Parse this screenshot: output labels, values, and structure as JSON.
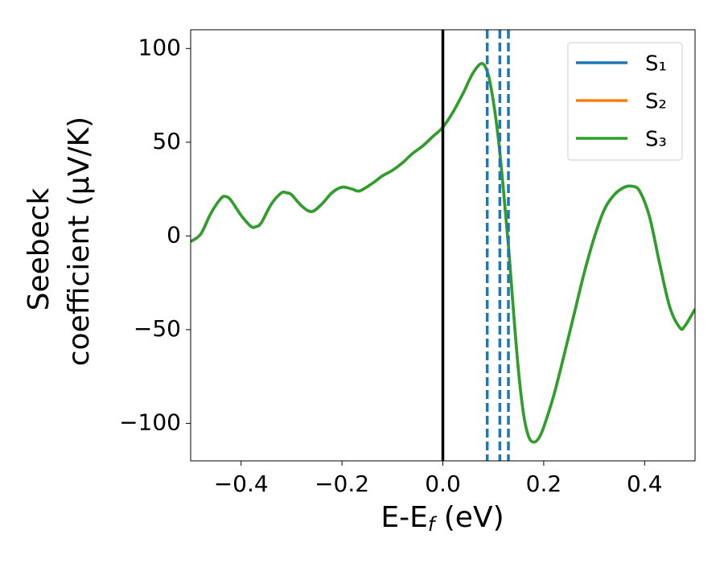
{
  "chart_data": {
    "type": "line",
    "xlabel": [
      "E-E",
      "f",
      " (eV)"
    ],
    "ylabel": [
      "Seebeck",
      "coefficient  (μV/K)"
    ],
    "x": [
      -0.5,
      -0.48,
      -0.46,
      -0.44,
      -0.43,
      -0.42,
      -0.4,
      -0.38,
      -0.37,
      -0.36,
      -0.34,
      -0.32,
      -0.31,
      -0.3,
      -0.28,
      -0.26,
      -0.24,
      -0.22,
      -0.2,
      -0.18,
      -0.165,
      -0.14,
      -0.12,
      -0.1,
      -0.08,
      -0.06,
      -0.04,
      -0.02,
      0,
      0.02,
      0.04,
      0.06,
      0.078,
      0.09,
      0.1,
      0.11,
      0.12,
      0.13,
      0.14,
      0.15,
      0.16,
      0.17,
      0.18,
      0.19,
      0.2,
      0.22,
      0.24,
      0.26,
      0.28,
      0.3,
      0.32,
      0.34,
      0.36,
      0.375,
      0.39,
      0.41,
      0.43,
      0.45,
      0.47,
      0.48,
      0.5
    ],
    "series": [
      {
        "name": "S₁",
        "color": "#1f77b4",
        "values": [
          -3,
          1,
          12,
          20,
          21,
          19,
          11,
          5,
          5,
          7,
          17,
          23,
          23,
          22,
          16,
          13,
          17,
          23,
          26,
          25,
          24,
          28,
          32,
          35,
          39,
          44,
          48,
          53,
          58,
          66,
          76,
          87,
          92,
          86,
          72,
          52,
          25,
          -5,
          -40,
          -72,
          -95,
          -107,
          -110,
          -108,
          -102,
          -85,
          -64,
          -42,
          -20,
          -1,
          14,
          22,
          26,
          26.5,
          24,
          10,
          -15,
          -38,
          -49,
          -48,
          -39
        ]
      },
      {
        "name": "S₂",
        "color": "#ff7f0e",
        "values": [
          -3,
          1,
          12,
          20,
          21,
          19,
          11,
          5,
          5,
          7,
          17,
          23,
          23,
          22,
          16,
          13,
          17,
          23,
          26,
          25,
          24,
          28,
          32,
          35,
          39,
          44,
          48,
          53,
          58,
          66,
          76,
          87,
          92,
          86,
          72,
          52,
          25,
          -5,
          -40,
          -72,
          -95,
          -107,
          -110,
          -108,
          -102,
          -85,
          -64,
          -42,
          -20,
          -1,
          14,
          22,
          26,
          26.5,
          24,
          10,
          -15,
          -38,
          -49,
          -48,
          -39
        ]
      },
      {
        "name": "S₃",
        "color": "#2ca02c",
        "values": [
          -3,
          1,
          12,
          20,
          21,
          19,
          11,
          5,
          5,
          7,
          17,
          23,
          23,
          22,
          16,
          13,
          17,
          23,
          26,
          25,
          24,
          28,
          32,
          35,
          39,
          44,
          48,
          53,
          58,
          66,
          76,
          87,
          92,
          86,
          72,
          52,
          25,
          -5,
          -40,
          -72,
          -95,
          -107,
          -110,
          -108,
          -102,
          -85,
          -64,
          -42,
          -20,
          -1,
          14,
          22,
          26,
          26.5,
          24,
          10,
          -15,
          -38,
          -49,
          -48,
          -39
        ]
      }
    ],
    "vlines": [
      {
        "x": 0,
        "color": "#000000",
        "style": "solid"
      },
      {
        "x": 0.088,
        "color": "#1f77b4",
        "style": "dashed"
      },
      {
        "x": 0.113,
        "color": "#1f77b4",
        "style": "dashed"
      },
      {
        "x": 0.13,
        "color": "#1f77b4",
        "style": "dashed"
      }
    ],
    "xlim": [
      -0.5,
      0.5
    ],
    "xticks": [
      {
        "value": -0.4,
        "label": "−0.4"
      },
      {
        "value": -0.2,
        "label": "−0.2"
      },
      {
        "value": 0,
        "label": "0.0"
      },
      0.2,
      0.4
    ],
    "ylim": [
      -120,
      110
    ],
    "yticks": [
      {
        "value": -100,
        "label": "−100"
      },
      {
        "value": -50,
        "label": "−50"
      },
      0,
      50,
      100
    ],
    "grid": false,
    "legend": "upper right"
  }
}
